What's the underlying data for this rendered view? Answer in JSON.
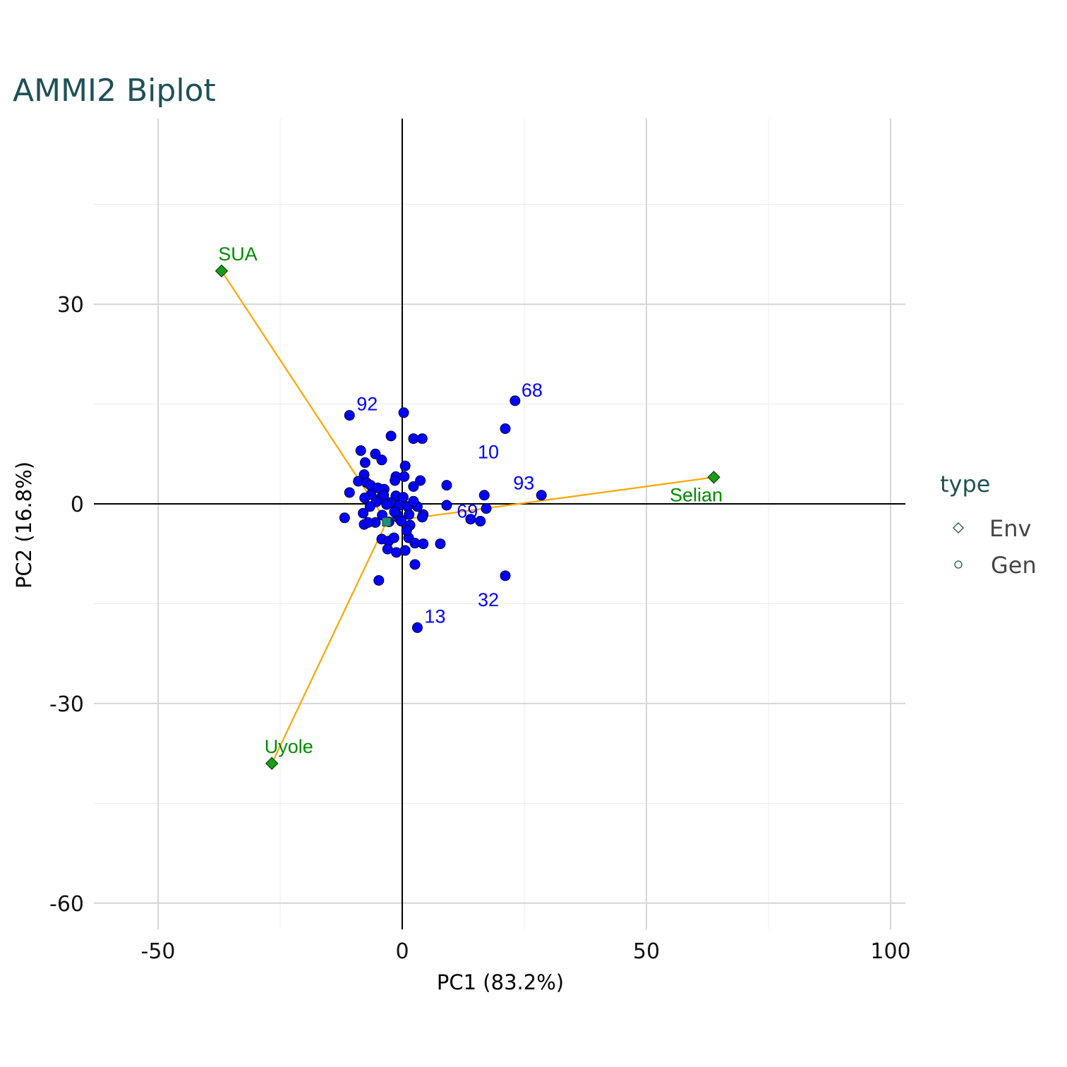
{
  "chart_data": {
    "type": "scatter",
    "title": "AMMI2 Biplot",
    "xlabel": "PC1 (83.2%)",
    "ylabel": "PC2 (16.8%)",
    "xlim": [
      -63,
      103
    ],
    "ylim": [
      -65,
      58
    ],
    "x_ticks": [
      -50,
      0,
      50,
      100
    ],
    "y_ticks": [
      30,
      0,
      -30,
      -60
    ],
    "x_tick_labels": [
      "-50",
      "0",
      "50",
      "100"
    ],
    "y_tick_labels": [
      "30",
      "0",
      "-30",
      "-60"
    ],
    "grid": true,
    "legend": {
      "title": "type",
      "placement": "right",
      "entries": [
        {
          "label": "Env",
          "shape": "diamond"
        },
        {
          "label": "Gen",
          "shape": "circle"
        }
      ]
    },
    "colors": {
      "genotype_fill": "#0000ff",
      "env_fill": "#1a9c1a",
      "env_label": "#008b00",
      "gen_label": "#0000ff",
      "vector": "#ffa500",
      "grid_major": "#d6d6d6",
      "grid_minor": "#ececec",
      "title": "#1f5156",
      "mean_point": "#1f8f7a"
    },
    "environments": [
      {
        "name": "SUA",
        "pc1": -37,
        "pc2": 35
      },
      {
        "name": "Selian",
        "pc1": 63.8,
        "pc2": 4
      },
      {
        "name": "Uyole",
        "pc1": -26.7,
        "pc2": -39
      }
    ],
    "labeled_genotypes": [
      {
        "label": "68",
        "pc1": 23.1,
        "pc2": 15.5
      },
      {
        "label": "92",
        "pc1": -10.8,
        "pc2": 13.3
      },
      {
        "label": "10",
        "pc1": 21.1,
        "pc2": 11.3
      },
      {
        "label": "93",
        "pc1": 28.5,
        "pc2": 1.3
      },
      {
        "label": "69",
        "pc1": 16.8,
        "pc2": 1.3
      },
      {
        "label": "32",
        "pc1": 21.1,
        "pc2": -10.8
      },
      {
        "label": "13",
        "pc1": 3.1,
        "pc2": -18.6
      }
    ],
    "mean_point": {
      "pc1": -3.2,
      "pc2": -2.7
    },
    "genotypes": [
      [
        -10.8,
        13.3
      ],
      [
        0.3,
        13.7
      ],
      [
        23.1,
        15.5
      ],
      [
        21.1,
        11.3
      ],
      [
        -2.3,
        10.2
      ],
      [
        2.3,
        9.8
      ],
      [
        4.1,
        9.8
      ],
      [
        -8.5,
        8.0
      ],
      [
        -5.5,
        7.5
      ],
      [
        -4.2,
        6.6
      ],
      [
        -7.6,
        6.2
      ],
      [
        0.6,
        5.7
      ],
      [
        -7.8,
        4.4
      ],
      [
        -1.3,
        4.1
      ],
      [
        0.4,
        4.1
      ],
      [
        -9.0,
        3.4
      ],
      [
        3.7,
        3.5
      ],
      [
        -7.3,
        3.2
      ],
      [
        -6.5,
        2.8
      ],
      [
        9.1,
        2.8
      ],
      [
        -5.0,
        2.4
      ],
      [
        -3.7,
        2.2
      ],
      [
        2.3,
        2.6
      ],
      [
        -1.5,
        3.5
      ],
      [
        -10.8,
        1.7
      ],
      [
        -6.4,
        1.4
      ],
      [
        16.8,
        1.3
      ],
      [
        28.5,
        1.3
      ],
      [
        -7.7,
        0.9
      ],
      [
        -4.4,
        0.9
      ],
      [
        -1.3,
        1.2
      ],
      [
        0.2,
        1.0
      ],
      [
        -5.3,
        0.3
      ],
      [
        -2.4,
        0.2
      ],
      [
        -0.6,
        -0.2
      ],
      [
        1.1,
        -0.4
      ],
      [
        -6.6,
        -0.4
      ],
      [
        -3.2,
        -0.1
      ],
      [
        3.1,
        -0.4
      ],
      [
        9.1,
        -0.2
      ],
      [
        -8.0,
        -1.4
      ],
      [
        -4.1,
        -1.7
      ],
      [
        -1.1,
        -1.6
      ],
      [
        1.4,
        -1.6
      ],
      [
        4.3,
        -1.6
      ],
      [
        17.2,
        -0.7
      ],
      [
        -11.8,
        -2.1
      ],
      [
        -7.8,
        -3.1
      ],
      [
        -5.5,
        -2.8
      ],
      [
        -2.7,
        -2.7
      ],
      [
        -0.6,
        -2.2
      ],
      [
        1.6,
        -3.2
      ],
      [
        4.1,
        -2.0
      ],
      [
        14.0,
        -2.3
      ],
      [
        16.0,
        -2.6
      ],
      [
        -7.0,
        -2.8
      ],
      [
        -4.2,
        -5.3
      ],
      [
        -2.8,
        -5.6
      ],
      [
        -1.7,
        -5.1
      ],
      [
        1.3,
        -5.1
      ],
      [
        2.6,
        -5.9
      ],
      [
        4.3,
        -6.0
      ],
      [
        7.8,
        -6.0
      ],
      [
        -3.0,
        -6.8
      ],
      [
        -1.2,
        -7.3
      ],
      [
        0.6,
        -7.0
      ],
      [
        2.6,
        -9.1
      ],
      [
        -4.8,
        -11.5
      ],
      [
        21.1,
        -10.8
      ],
      [
        3.1,
        -18.6
      ],
      [
        -1.6,
        -1.2
      ],
      [
        -0.2,
        -2.6
      ],
      [
        2.3,
        0.4
      ],
      [
        -3.8,
        1.3
      ],
      [
        0.9,
        -4.0
      ]
    ]
  }
}
